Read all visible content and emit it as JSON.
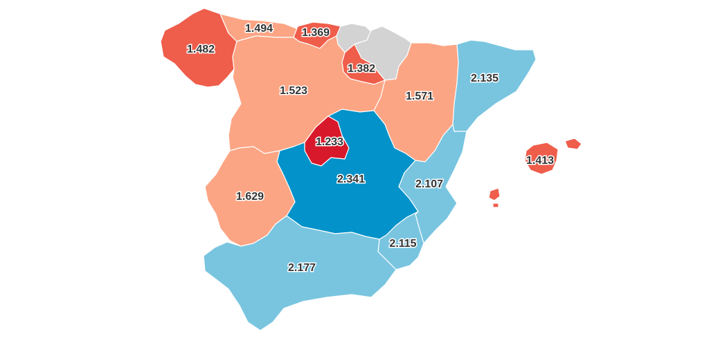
{
  "map": {
    "colors": {
      "dark_red": "#d7192b",
      "red": "#ef5d4b",
      "salmon": "#fca584",
      "light_blue": "#79c5e0",
      "dark_blue": "#0392c9",
      "no_data_gray": "#d3d3d3"
    },
    "regions": [
      {
        "key": "galicia",
        "value": "1.482",
        "tier": "red"
      },
      {
        "key": "asturias",
        "value": "1.494",
        "tier": "salmon"
      },
      {
        "key": "cantabria",
        "value": "1.369",
        "tier": "red"
      },
      {
        "key": "pais_vasco",
        "value": "",
        "tier": "no_data_gray"
      },
      {
        "key": "navarra",
        "value": "",
        "tier": "no_data_gray"
      },
      {
        "key": "la_rioja",
        "value": "1.382",
        "tier": "red"
      },
      {
        "key": "castilla_leon",
        "value": "1.523",
        "tier": "salmon"
      },
      {
        "key": "aragon",
        "value": "1.571",
        "tier": "salmon"
      },
      {
        "key": "cataluna",
        "value": "2.135",
        "tier": "light_blue"
      },
      {
        "key": "madrid",
        "value": "1.233",
        "tier": "dark_red"
      },
      {
        "key": "castilla_la_mancha",
        "value": "2.341",
        "tier": "dark_blue"
      },
      {
        "key": "c_valenciana",
        "value": "2.107",
        "tier": "light_blue"
      },
      {
        "key": "baleares",
        "value": "1.413",
        "tier": "red"
      },
      {
        "key": "extremadura",
        "value": "1.629",
        "tier": "salmon"
      },
      {
        "key": "murcia",
        "value": "2.115",
        "tier": "light_blue"
      },
      {
        "key": "andalucia",
        "value": "2.177",
        "tier": "light_blue"
      }
    ]
  }
}
